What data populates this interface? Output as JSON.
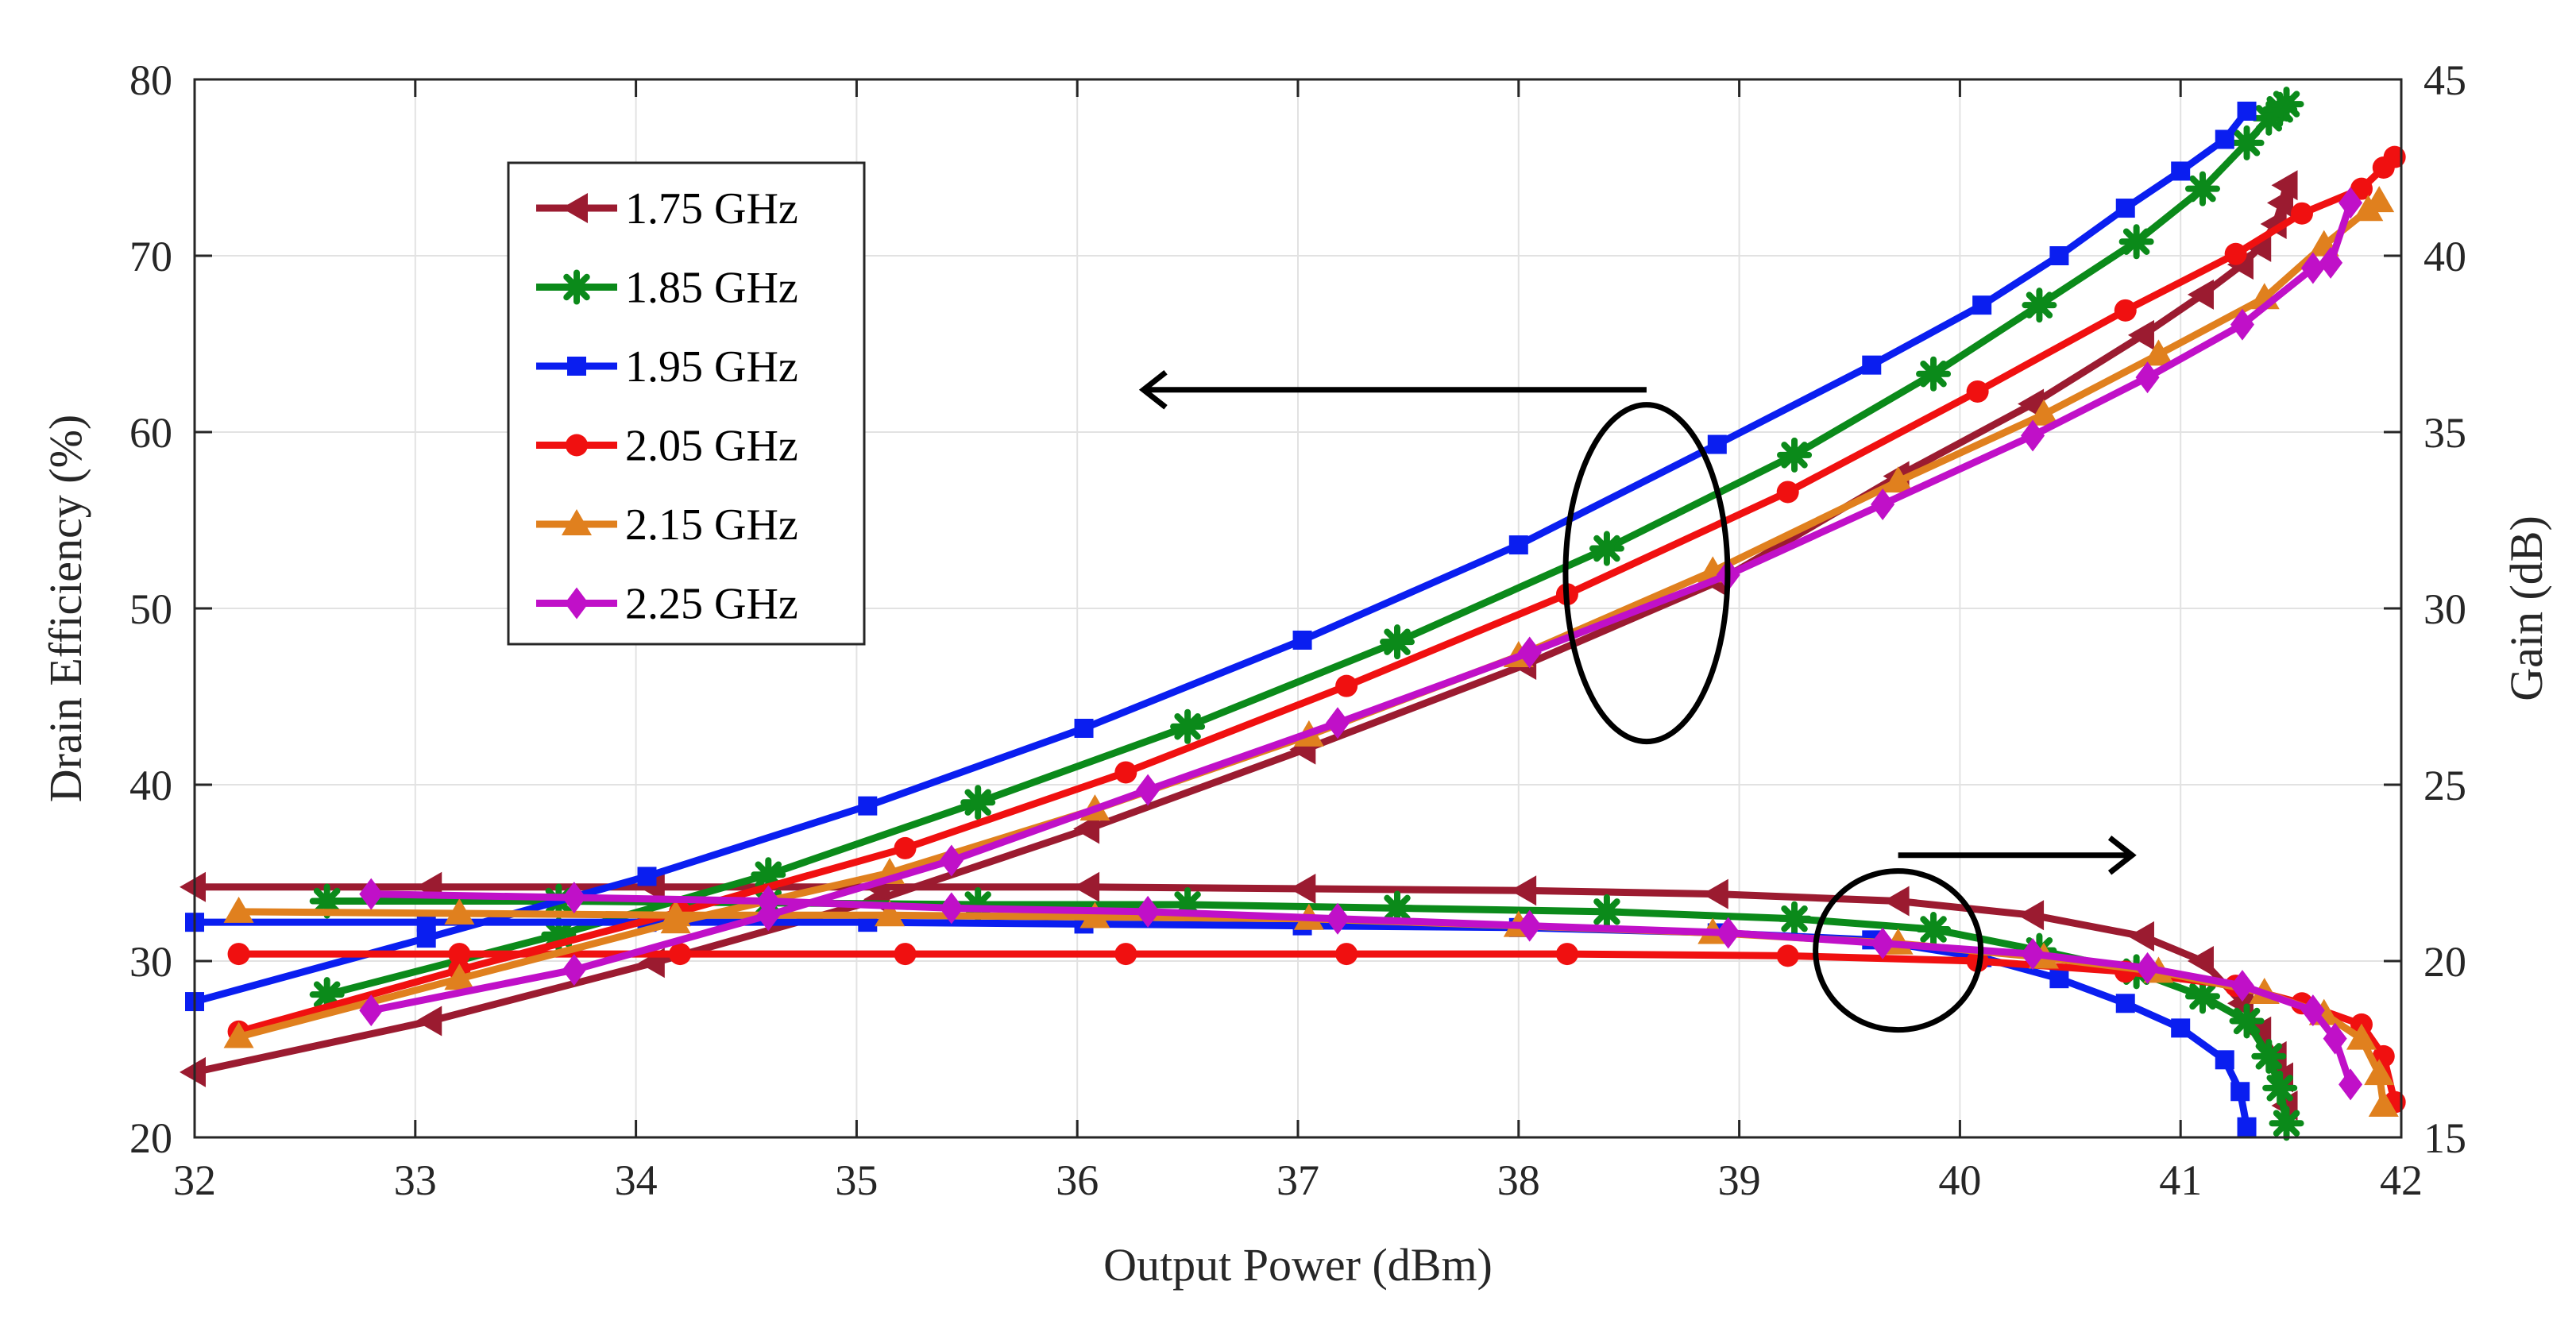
{
  "chart_data": {
    "type": "line",
    "title": "",
    "xlabel": "Output Power (dBm)",
    "ylabel_left": "Drain Efficiency (%)",
    "ylabel_right": "Gain (dB)",
    "xlim": [
      32,
      42
    ],
    "ylim_left": [
      20,
      80
    ],
    "ylim_right": [
      15,
      45
    ],
    "xticks": [
      32,
      33,
      34,
      35,
      36,
      37,
      38,
      39,
      40,
      41,
      42
    ],
    "yticks_left": [
      20,
      30,
      40,
      50,
      60,
      70,
      80
    ],
    "yticks_right": [
      15,
      20,
      25,
      30,
      35,
      40,
      45
    ],
    "grid": true,
    "legend_position": "top-left",
    "annotations": [
      {
        "type": "ellipse",
        "group": "efficiency",
        "arrow_direction": "left",
        "meaning": "efficiency curves read on left axis"
      },
      {
        "type": "ellipse",
        "group": "gain",
        "arrow_direction": "right",
        "meaning": "gain curves read on right axis"
      }
    ],
    "series": [
      {
        "name": "1.75 GHz",
        "color": "#9b1b30",
        "marker": "triangle-left",
        "efficiency": [
          [
            32.0,
            23.7
          ],
          [
            33.07,
            26.6
          ],
          [
            34.08,
            29.9
          ],
          [
            35.1,
            33.5
          ],
          [
            36.05,
            37.5
          ],
          [
            37.03,
            42.0
          ],
          [
            38.03,
            46.8
          ],
          [
            38.9,
            51.5
          ],
          [
            39.72,
            57.5
          ],
          [
            40.33,
            61.6
          ],
          [
            40.83,
            65.5
          ],
          [
            41.1,
            67.8
          ],
          [
            41.28,
            69.5
          ],
          [
            41.36,
            70.5
          ],
          [
            41.43,
            71.8
          ],
          [
            41.46,
            73.0
          ],
          [
            41.48,
            74.0
          ]
        ],
        "gain": [
          [
            32.0,
            22.1
          ],
          [
            33.07,
            22.1
          ],
          [
            34.08,
            22.1
          ],
          [
            35.1,
            22.1
          ],
          [
            36.05,
            22.1
          ],
          [
            37.03,
            22.05
          ],
          [
            38.03,
            22.0
          ],
          [
            38.9,
            21.9
          ],
          [
            39.72,
            21.7
          ],
          [
            40.33,
            21.3
          ],
          [
            40.83,
            20.7
          ],
          [
            41.1,
            20.0
          ],
          [
            41.28,
            18.8
          ],
          [
            41.36,
            18.0
          ],
          [
            41.43,
            17.3
          ],
          [
            41.46,
            16.7
          ],
          [
            41.48,
            15.9
          ]
        ]
      },
      {
        "name": "1.85 GHz",
        "color": "#0b8a1a",
        "marker": "asterisk",
        "efficiency": [
          [
            32.6,
            28.1
          ],
          [
            33.65,
            31.5
          ],
          [
            34.6,
            34.9
          ],
          [
            35.55,
            39.0
          ],
          [
            36.5,
            43.3
          ],
          [
            37.45,
            48.1
          ],
          [
            38.4,
            53.4
          ],
          [
            39.25,
            58.7
          ],
          [
            39.88,
            63.3
          ],
          [
            40.36,
            67.2
          ],
          [
            40.8,
            70.8
          ],
          [
            41.1,
            73.8
          ],
          [
            41.3,
            76.4
          ],
          [
            41.4,
            77.8
          ],
          [
            41.45,
            78.3
          ],
          [
            41.48,
            78.6
          ]
        ],
        "gain": [
          [
            32.6,
            21.7
          ],
          [
            33.65,
            21.7
          ],
          [
            34.6,
            21.65
          ],
          [
            35.55,
            21.6
          ],
          [
            36.5,
            21.6
          ],
          [
            37.45,
            21.5
          ],
          [
            38.4,
            21.4
          ],
          [
            39.25,
            21.2
          ],
          [
            39.88,
            20.9
          ],
          [
            40.36,
            20.3
          ],
          [
            40.8,
            19.7
          ],
          [
            41.1,
            19.0
          ],
          [
            41.3,
            18.3
          ],
          [
            41.4,
            17.3
          ],
          [
            41.45,
            16.4
          ],
          [
            41.48,
            15.4
          ]
        ]
      },
      {
        "name": "1.95 GHz",
        "color": "#0a1ef0",
        "marker": "square",
        "efficiency": [
          [
            32.0,
            27.7
          ],
          [
            33.05,
            31.3
          ],
          [
            34.05,
            34.8
          ],
          [
            35.05,
            38.8
          ],
          [
            36.03,
            43.2
          ],
          [
            37.02,
            48.2
          ],
          [
            38.0,
            53.6
          ],
          [
            38.9,
            59.3
          ],
          [
            39.6,
            63.8
          ],
          [
            40.1,
            67.2
          ],
          [
            40.45,
            70.0
          ],
          [
            40.75,
            72.7
          ],
          [
            41.0,
            74.8
          ],
          [
            41.2,
            76.6
          ],
          [
            41.3,
            78.2
          ]
        ],
        "gain": [
          [
            32.0,
            21.1
          ],
          [
            33.05,
            21.1
          ],
          [
            34.05,
            21.1
          ],
          [
            35.05,
            21.1
          ],
          [
            36.03,
            21.05
          ],
          [
            37.02,
            21.0
          ],
          [
            38.0,
            20.95
          ],
          [
            38.9,
            20.8
          ],
          [
            39.6,
            20.6
          ],
          [
            40.1,
            20.1
          ],
          [
            40.45,
            19.5
          ],
          [
            40.75,
            18.8
          ],
          [
            41.0,
            18.1
          ],
          [
            41.2,
            17.2
          ],
          [
            41.27,
            16.3
          ],
          [
            41.3,
            15.3
          ]
        ]
      },
      {
        "name": "2.05 GHz",
        "color": "#f01010",
        "marker": "circle",
        "efficiency": [
          [
            32.2,
            26.0
          ],
          [
            33.2,
            29.5
          ],
          [
            34.2,
            32.8
          ],
          [
            35.22,
            36.4
          ],
          [
            36.22,
            40.7
          ],
          [
            37.22,
            45.6
          ],
          [
            38.22,
            50.8
          ],
          [
            39.22,
            56.6
          ],
          [
            40.08,
            62.3
          ],
          [
            40.75,
            66.9
          ],
          [
            41.25,
            70.1
          ],
          [
            41.55,
            72.4
          ],
          [
            41.82,
            73.8
          ],
          [
            41.92,
            75.0
          ],
          [
            41.97,
            75.6
          ]
        ],
        "gain": [
          [
            32.2,
            20.2
          ],
          [
            33.2,
            20.2
          ],
          [
            34.2,
            20.2
          ],
          [
            35.22,
            20.2
          ],
          [
            36.22,
            20.2
          ],
          [
            37.22,
            20.2
          ],
          [
            38.22,
            20.2
          ],
          [
            39.22,
            20.15
          ],
          [
            40.08,
            20.0
          ],
          [
            40.75,
            19.7
          ],
          [
            41.25,
            19.3
          ],
          [
            41.55,
            18.8
          ],
          [
            41.82,
            18.2
          ],
          [
            41.92,
            17.3
          ],
          [
            41.97,
            16.0
          ]
        ]
      },
      {
        "name": "2.15 GHz",
        "color": "#e0801e",
        "marker": "triangle-up",
        "efficiency": [
          [
            32.2,
            25.7
          ],
          [
            33.2,
            29.0
          ],
          [
            34.18,
            32.2
          ],
          [
            35.15,
            35.0
          ],
          [
            36.08,
            38.6
          ],
          [
            37.05,
            42.8
          ],
          [
            38.0,
            47.3
          ],
          [
            38.88,
            52.1
          ],
          [
            39.72,
            57.2
          ],
          [
            40.38,
            61.0
          ],
          [
            40.9,
            64.4
          ],
          [
            41.38,
            67.6
          ],
          [
            41.65,
            70.6
          ],
          [
            41.85,
            72.6
          ],
          [
            41.9,
            73.1
          ]
        ],
        "gain": [
          [
            32.2,
            21.4
          ],
          [
            33.2,
            21.35
          ],
          [
            34.18,
            21.3
          ],
          [
            35.15,
            21.3
          ],
          [
            36.08,
            21.25
          ],
          [
            37.05,
            21.2
          ],
          [
            38.0,
            21.0
          ],
          [
            38.88,
            20.8
          ],
          [
            39.72,
            20.5
          ],
          [
            40.38,
            20.1
          ],
          [
            40.9,
            19.7
          ],
          [
            41.38,
            19.1
          ],
          [
            41.65,
            18.5
          ],
          [
            41.82,
            17.8
          ],
          [
            41.9,
            16.8
          ],
          [
            41.92,
            15.9
          ]
        ]
      },
      {
        "name": "2.25 GHz",
        "color": "#c010c8",
        "marker": "diamond",
        "efficiency": [
          [
            32.8,
            27.2
          ],
          [
            33.72,
            29.5
          ],
          [
            34.6,
            32.6
          ],
          [
            35.43,
            35.7
          ],
          [
            36.32,
            39.7
          ],
          [
            37.18,
            43.5
          ],
          [
            38.05,
            47.5
          ],
          [
            38.95,
            51.9
          ],
          [
            39.65,
            55.9
          ],
          [
            40.33,
            59.8
          ],
          [
            40.85,
            63.1
          ],
          [
            41.28,
            66.1
          ],
          [
            41.6,
            69.3
          ],
          [
            41.68,
            69.6
          ],
          [
            41.77,
            73.0
          ]
        ],
        "gain": [
          [
            32.8,
            21.9
          ],
          [
            33.72,
            21.8
          ],
          [
            34.6,
            21.7
          ],
          [
            35.43,
            21.5
          ],
          [
            36.32,
            21.4
          ],
          [
            37.18,
            21.2
          ],
          [
            38.05,
            21.0
          ],
          [
            38.95,
            20.8
          ],
          [
            39.65,
            20.5
          ],
          [
            40.33,
            20.2
          ],
          [
            40.85,
            19.8
          ],
          [
            41.28,
            19.3
          ],
          [
            41.6,
            18.6
          ],
          [
            41.7,
            17.8
          ],
          [
            41.77,
            16.5
          ]
        ]
      }
    ]
  }
}
